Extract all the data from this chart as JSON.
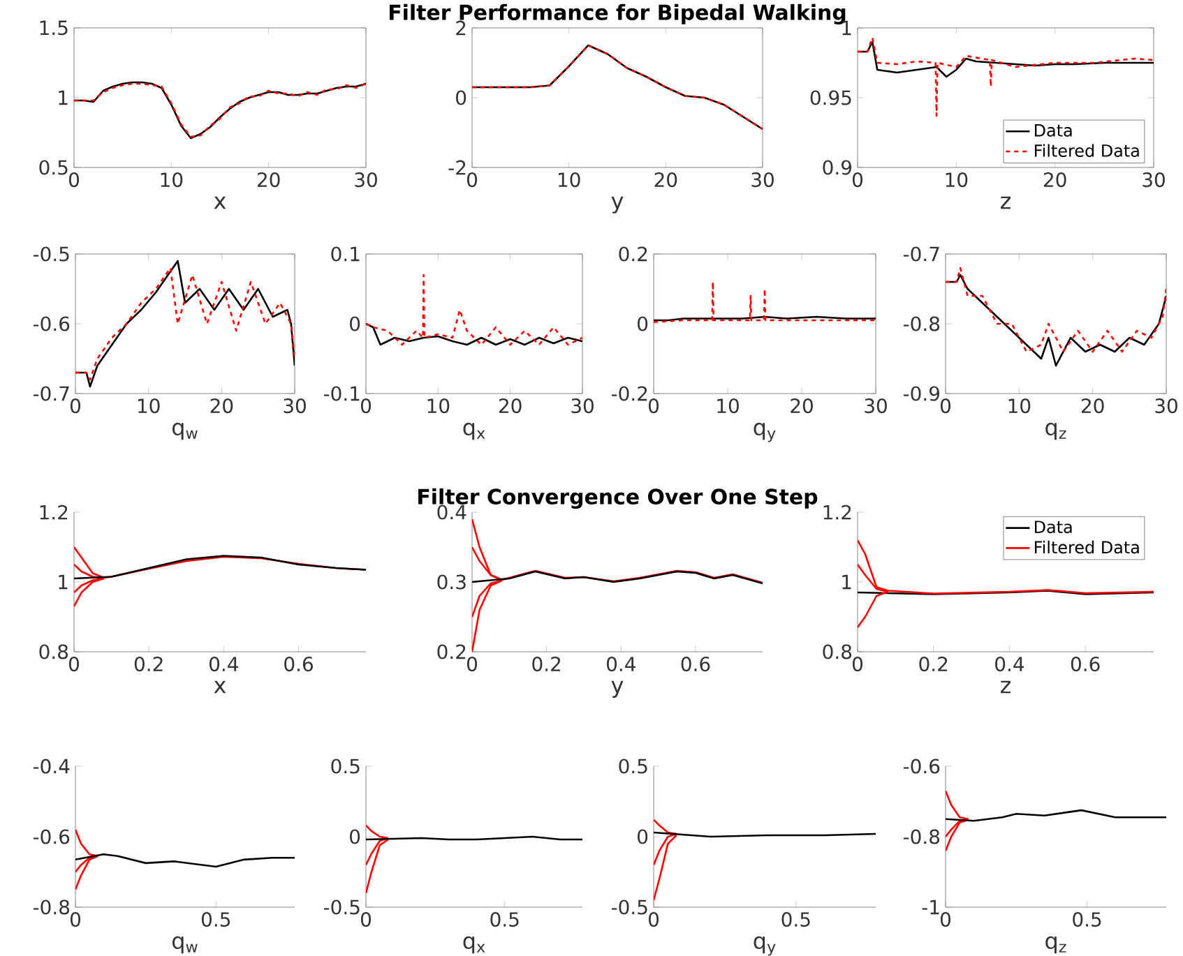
{
  "chart_data": [
    {
      "type": "line",
      "xlabel": "x",
      "xlim": [
        0,
        30
      ],
      "xticks": [
        0,
        10,
        20,
        30
      ],
      "ylim": [
        0.5,
        1.5
      ],
      "yticks": [
        0.5,
        1,
        1.5
      ],
      "series": [
        {
          "color": "#000000",
          "x": [
            0,
            1,
            2,
            3,
            4,
            5,
            6,
            7,
            8,
            9,
            10,
            11,
            12,
            13,
            14,
            15,
            16,
            17,
            18,
            19,
            20,
            21,
            22,
            23,
            24,
            25,
            26,
            27,
            28,
            29,
            30
          ],
          "values": [
            0.98,
            0.98,
            0.97,
            1.05,
            1.08,
            1.1,
            1.11,
            1.11,
            1.1,
            1.07,
            0.95,
            0.8,
            0.71,
            0.74,
            0.79,
            0.86,
            0.92,
            0.97,
            1.0,
            1.02,
            1.04,
            1.04,
            1.02,
            1.02,
            1.03,
            1.03,
            1.05,
            1.07,
            1.08,
            1.08,
            1.1
          ]
        },
        {
          "color": "#ff0000",
          "line_style": "dashed",
          "x": [
            0,
            1,
            2,
            3,
            4,
            5,
            6,
            7,
            8,
            9,
            10,
            11,
            12,
            13,
            14,
            15,
            16,
            17,
            18,
            19,
            20,
            21,
            22,
            23,
            24,
            25,
            26,
            27,
            28,
            29,
            30
          ],
          "values": [
            0.98,
            0.98,
            0.98,
            1.04,
            1.07,
            1.09,
            1.1,
            1.1,
            1.09,
            1.08,
            0.96,
            0.81,
            0.72,
            0.73,
            0.8,
            0.85,
            0.93,
            0.96,
            1.01,
            1.01,
            1.05,
            1.03,
            1.03,
            1.01,
            1.04,
            1.02,
            1.06,
            1.06,
            1.09,
            1.07,
            1.1
          ]
        }
      ]
    },
    {
      "type": "line",
      "title": "Filter Performance for Bipedal Walking",
      "xlabel": "y",
      "xlim": [
        0,
        30
      ],
      "xticks": [
        0,
        10,
        20,
        30
      ],
      "ylim": [
        -2,
        2
      ],
      "yticks": [
        -2,
        0,
        2
      ],
      "series": [
        {
          "color": "#000000",
          "x": [
            0,
            2,
            4,
            6,
            8,
            10,
            12,
            14,
            16,
            18,
            20,
            22,
            24,
            26,
            28,
            30
          ],
          "values": [
            0.3,
            0.3,
            0.3,
            0.3,
            0.35,
            0.9,
            1.5,
            1.25,
            0.85,
            0.6,
            0.3,
            0.05,
            0.0,
            -0.2,
            -0.55,
            -0.9
          ]
        },
        {
          "color": "#ff0000",
          "line_style": "dashed",
          "x": [
            0,
            2,
            4,
            6,
            8,
            10,
            12,
            14,
            16,
            18,
            20,
            22,
            24,
            26,
            28,
            30
          ],
          "values": [
            0.3,
            0.3,
            0.3,
            0.3,
            0.35,
            0.9,
            1.5,
            1.25,
            0.85,
            0.6,
            0.3,
            0.05,
            0.0,
            -0.2,
            -0.55,
            -0.9
          ]
        }
      ]
    },
    {
      "type": "line",
      "xlabel": "z",
      "xlim": [
        0,
        30
      ],
      "xticks": [
        0,
        10,
        20,
        30
      ],
      "ylim": [
        0.9,
        1
      ],
      "yticks": [
        0.9,
        0.95,
        1
      ],
      "legend": "bottom right",
      "series": [
        {
          "name": "Data",
          "color": "#000000",
          "x": [
            0,
            1,
            1.5,
            2,
            4,
            6,
            8,
            9,
            10,
            11,
            12,
            14,
            16,
            18,
            20,
            22,
            25,
            28,
            30
          ],
          "values": [
            0.983,
            0.983,
            0.99,
            0.97,
            0.968,
            0.97,
            0.972,
            0.965,
            0.97,
            0.978,
            0.976,
            0.975,
            0.974,
            0.973,
            0.974,
            0.974,
            0.975,
            0.975,
            0.975
          ]
        },
        {
          "name": "Filtered Data",
          "color": "#ff0000",
          "line_style": "dashed",
          "x": [
            0,
            1,
            1.5,
            2,
            4,
            6,
            7.9,
            8,
            8.1,
            10,
            11,
            13.4,
            13.5,
            13.6,
            16,
            20,
            24,
            28,
            30
          ],
          "values": [
            0.983,
            0.983,
            0.993,
            0.975,
            0.974,
            0.976,
            0.975,
            0.937,
            0.975,
            0.972,
            0.98,
            0.977,
            0.958,
            0.977,
            0.972,
            0.975,
            0.975,
            0.978,
            0.977
          ]
        }
      ]
    },
    {
      "type": "line",
      "xlabel": "q$_{w}$",
      "xlim": [
        0,
        30
      ],
      "xticks": [
        0,
        10,
        20,
        30
      ],
      "ylim": [
        -0.7,
        -0.5
      ],
      "yticks": [
        -0.7,
        -0.6,
        -0.5
      ],
      "series": [
        {
          "color": "#000000",
          "x": [
            0,
            1.5,
            2,
            3,
            5,
            7,
            9,
            11,
            12,
            14,
            15,
            17,
            19,
            21,
            23,
            25,
            27,
            29,
            29.5,
            30
          ],
          "values": [
            -0.67,
            -0.67,
            -0.69,
            -0.66,
            -0.63,
            -0.6,
            -0.58,
            -0.555,
            -0.54,
            -0.51,
            -0.57,
            -0.55,
            -0.58,
            -0.55,
            -0.58,
            -0.55,
            -0.59,
            -0.58,
            -0.6,
            -0.66
          ]
        },
        {
          "color": "#ff0000",
          "line_style": "dashed",
          "x": [
            0,
            1.5,
            2,
            3,
            5,
            7,
            9,
            11,
            13,
            14,
            16,
            18,
            20,
            22,
            24,
            26,
            28,
            29.5,
            30
          ],
          "values": [
            -0.67,
            -0.67,
            -0.68,
            -0.65,
            -0.62,
            -0.6,
            -0.57,
            -0.55,
            -0.52,
            -0.6,
            -0.53,
            -0.6,
            -0.54,
            -0.61,
            -0.54,
            -0.6,
            -0.57,
            -0.6,
            -0.65
          ]
        }
      ]
    },
    {
      "type": "line",
      "xlabel": "q$_{x}$",
      "xlim": [
        0,
        30
      ],
      "xticks": [
        0,
        10,
        20,
        30
      ],
      "ylim": [
        -0.1,
        0.1
      ],
      "yticks": [
        -0.1,
        0,
        0.1
      ],
      "series": [
        {
          "color": "#000000",
          "x": [
            0,
            1,
            2,
            4,
            6,
            8,
            10,
            12,
            14,
            16,
            18,
            20,
            22,
            24,
            26,
            28,
            30
          ],
          "values": [
            0,
            -0.005,
            -0.03,
            -0.02,
            -0.025,
            -0.02,
            -0.018,
            -0.025,
            -0.03,
            -0.02,
            -0.03,
            -0.022,
            -0.03,
            -0.02,
            -0.028,
            -0.02,
            -0.025
          ]
        },
        {
          "color": "#ff0000",
          "line_style": "dashed",
          "x": [
            0,
            1,
            3,
            5,
            7,
            7.9,
            8,
            8.1,
            10,
            12,
            13,
            14,
            16,
            18,
            20,
            22,
            24,
            26,
            28,
            30
          ],
          "values": [
            0,
            -0.005,
            -0.01,
            -0.03,
            -0.01,
            -0.02,
            0.07,
            -0.02,
            -0.015,
            -0.02,
            0.02,
            -0.01,
            -0.03,
            -0.005,
            -0.03,
            -0.01,
            -0.03,
            -0.005,
            -0.03,
            -0.02
          ]
        }
      ]
    },
    {
      "type": "line",
      "xlabel": "q$_{y}$",
      "xlim": [
        0,
        30
      ],
      "xticks": [
        0,
        10,
        20,
        30
      ],
      "ylim": [
        -0.2,
        0.2
      ],
      "yticks": [
        -0.2,
        0,
        0.2
      ],
      "series": [
        {
          "color": "#000000",
          "x": [
            0,
            2,
            4,
            8,
            12,
            15,
            18,
            22,
            26,
            30
          ],
          "values": [
            0.01,
            0.01,
            0.015,
            0.015,
            0.015,
            0.02,
            0.015,
            0.02,
            0.015,
            0.015
          ]
        },
        {
          "color": "#ff0000",
          "line_style": "dashed",
          "x": [
            0,
            4,
            7.9,
            8,
            8.1,
            13,
            13.1,
            13.2,
            14.9,
            15,
            15.1,
            20,
            25,
            30
          ],
          "values": [
            0.005,
            0.01,
            0.01,
            0.12,
            0.01,
            0.01,
            0.08,
            0.01,
            0.01,
            0.1,
            0.01,
            0.01,
            0.01,
            0.01
          ]
        }
      ]
    },
    {
      "type": "line",
      "xlabel": "q$_{z}$",
      "xlim": [
        0,
        30
      ],
      "xticks": [
        0,
        10,
        20,
        30
      ],
      "ylim": [
        -0.9,
        -0.7
      ],
      "yticks": [
        -0.9,
        -0.8,
        -0.7
      ],
      "series": [
        {
          "color": "#000000",
          "x": [
            0,
            1.5,
            2,
            3,
            5,
            7,
            9,
            11,
            12,
            13,
            14,
            15,
            17,
            19,
            21,
            23,
            25,
            27,
            29,
            30
          ],
          "values": [
            -0.74,
            -0.74,
            -0.73,
            -0.75,
            -0.77,
            -0.79,
            -0.81,
            -0.83,
            -0.84,
            -0.85,
            -0.82,
            -0.86,
            -0.82,
            -0.84,
            -0.83,
            -0.84,
            -0.82,
            -0.83,
            -0.8,
            -0.76
          ]
        },
        {
          "color": "#ff0000",
          "line_style": "dashed",
          "x": [
            0,
            1.5,
            2,
            3,
            5,
            7,
            9,
            11,
            13,
            14,
            16,
            18,
            20,
            22,
            24,
            26,
            28,
            29.5,
            30
          ],
          "values": [
            -0.74,
            -0.74,
            -0.72,
            -0.76,
            -0.76,
            -0.8,
            -0.8,
            -0.84,
            -0.83,
            -0.8,
            -0.84,
            -0.81,
            -0.84,
            -0.81,
            -0.84,
            -0.81,
            -0.82,
            -0.79,
            -0.75
          ]
        }
      ]
    },
    {
      "type": "line",
      "xlabel": "x",
      "xlim": [
        0,
        0.78
      ],
      "xticks": [
        0,
        0.2,
        0.4,
        0.6
      ],
      "ylim": [
        0.8,
        1.2
      ],
      "yticks": [
        0.8,
        1,
        1.2
      ],
      "series": [
        {
          "color": "#ff0000",
          "x": [
            0,
            0.02,
            0.05,
            0.08,
            0.1,
            0.2,
            0.3,
            0.4,
            0.5,
            0.6,
            0.7,
            0.78
          ],
          "values": [
            1.1,
            1.07,
            1.025,
            1.012,
            1.015,
            1.038,
            1.06,
            1.072,
            1.068,
            1.052,
            1.04,
            1.035
          ]
        },
        {
          "color": "#ff0000",
          "x": [
            0,
            0.02,
            0.05,
            0.08
          ],
          "values": [
            1.05,
            1.03,
            1.015,
            1.01
          ]
        },
        {
          "color": "#ff0000",
          "x": [
            0,
            0.02,
            0.05,
            0.08
          ],
          "values": [
            0.97,
            0.99,
            1.005,
            1.01
          ]
        },
        {
          "color": "#ff0000",
          "x": [
            0,
            0.02,
            0.05,
            0.08
          ],
          "values": [
            0.93,
            0.97,
            1.0,
            1.01
          ]
        },
        {
          "color": "#000000",
          "x": [
            0,
            0.1,
            0.2,
            0.3,
            0.4,
            0.5,
            0.6,
            0.7,
            0.78
          ],
          "values": [
            1.01,
            1.015,
            1.04,
            1.065,
            1.075,
            1.07,
            1.05,
            1.04,
            1.035
          ]
        }
      ]
    },
    {
      "type": "line",
      "title": "Filter Convergence Over One Step",
      "xlabel": "y",
      "xlim": [
        0,
        0.78
      ],
      "xticks": [
        0,
        0.2,
        0.4,
        0.6
      ],
      "ylim": [
        0.2,
        0.4
      ],
      "yticks": [
        0.2,
        0.3,
        0.4
      ],
      "series": [
        {
          "color": "#ff0000",
          "x": [
            0,
            0.02,
            0.05,
            0.08,
            0.1,
            0.17,
            0.25,
            0.3,
            0.38,
            0.45,
            0.55,
            0.6,
            0.65,
            0.7,
            0.78
          ],
          "values": [
            0.39,
            0.35,
            0.31,
            0.303,
            0.306,
            0.316,
            0.306,
            0.307,
            0.301,
            0.306,
            0.316,
            0.314,
            0.306,
            0.311,
            0.299
          ]
        },
        {
          "color": "#ff0000",
          "x": [
            0,
            0.02,
            0.05,
            0.08
          ],
          "values": [
            0.35,
            0.33,
            0.31,
            0.303
          ]
        },
        {
          "color": "#ff0000",
          "x": [
            0,
            0.02,
            0.05,
            0.08
          ],
          "values": [
            0.25,
            0.28,
            0.298,
            0.302
          ]
        },
        {
          "color": "#ff0000",
          "x": [
            0,
            0.02,
            0.05,
            0.08
          ],
          "values": [
            0.2,
            0.26,
            0.295,
            0.302
          ]
        },
        {
          "color": "#000000",
          "x": [
            0,
            0.1,
            0.17,
            0.25,
            0.3,
            0.38,
            0.45,
            0.55,
            0.6,
            0.65,
            0.7,
            0.78
          ],
          "values": [
            0.3,
            0.305,
            0.315,
            0.305,
            0.307,
            0.3,
            0.305,
            0.315,
            0.313,
            0.305,
            0.31,
            0.298
          ]
        }
      ]
    },
    {
      "type": "line",
      "xlabel": "z",
      "xlim": [
        0,
        0.78
      ],
      "xticks": [
        0,
        0.2,
        0.4,
        0.6
      ],
      "ylim": [
        0.8,
        1.2
      ],
      "yticks": [
        0.8,
        1,
        1.2
      ],
      "legend": "top right",
      "series": [
        {
          "name": "Data",
          "color": "#000000",
          "x": [
            0,
            0.2,
            0.4,
            0.5,
            0.6,
            0.78
          ],
          "values": [
            0.97,
            0.965,
            0.97,
            0.975,
            0.965,
            0.97
          ]
        },
        {
          "name": "Filtered Data",
          "color": "#ff0000",
          "x": [
            0,
            0.02,
            0.05,
            0.08,
            0.2,
            0.4,
            0.5,
            0.6,
            0.78
          ],
          "values": [
            1.12,
            1.08,
            0.985,
            0.975,
            0.967,
            0.972,
            0.977,
            0.968,
            0.972
          ]
        },
        {
          "color": "#ff0000",
          "x": [
            0,
            0.02,
            0.05,
            0.08
          ],
          "values": [
            1.05,
            1.02,
            0.98,
            0.972
          ]
        },
        {
          "color": "#ff0000",
          "x": [
            0,
            0.02,
            0.05,
            0.08
          ],
          "values": [
            0.87,
            0.9,
            0.96,
            0.972
          ]
        }
      ]
    },
    {
      "type": "line",
      "xlabel": "q$_{w}$",
      "xlim": [
        0,
        0.78
      ],
      "xticks": [
        0,
        0.5
      ],
      "ylim": [
        -0.8,
        -0.4
      ],
      "yticks": [
        -0.8,
        -0.6,
        -0.4
      ],
      "series": [
        {
          "color": "#ff0000",
          "x": [
            0,
            0.02,
            0.05,
            0.08
          ],
          "values": [
            -0.58,
            -0.62,
            -0.65,
            -0.655
          ]
        },
        {
          "color": "#ff0000",
          "x": [
            0,
            0.02,
            0.05,
            0.08
          ],
          "values": [
            -0.75,
            -0.71,
            -0.665,
            -0.655
          ]
        },
        {
          "color": "#ff0000",
          "x": [
            0,
            0.02,
            0.05,
            0.08
          ],
          "values": [
            -0.7,
            -0.68,
            -0.66,
            -0.655
          ]
        },
        {
          "color": "#000000",
          "x": [
            0,
            0.1,
            0.15,
            0.25,
            0.35,
            0.5,
            0.6,
            0.7,
            0.78
          ],
          "values": [
            -0.665,
            -0.65,
            -0.655,
            -0.675,
            -0.67,
            -0.685,
            -0.665,
            -0.66,
            -0.66
          ]
        }
      ]
    },
    {
      "type": "line",
      "xlabel": "q$_{x}$",
      "xlim": [
        0,
        0.78
      ],
      "xticks": [
        0,
        0.5
      ],
      "ylim": [
        -0.5,
        0.5
      ],
      "yticks": [
        -0.5,
        0,
        0.5
      ],
      "series": [
        {
          "color": "#ff0000",
          "x": [
            0,
            0.02,
            0.05,
            0.08
          ],
          "values": [
            0.08,
            0.04,
            0.0,
            -0.01
          ]
        },
        {
          "color": "#ff0000",
          "x": [
            0,
            0.02,
            0.05,
            0.08
          ],
          "values": [
            -0.4,
            -0.25,
            -0.06,
            -0.02
          ]
        },
        {
          "color": "#ff0000",
          "x": [
            0,
            0.02,
            0.05,
            0.08
          ],
          "values": [
            -0.2,
            -0.12,
            -0.03,
            -0.01
          ]
        },
        {
          "color": "#000000",
          "x": [
            0,
            0.2,
            0.3,
            0.4,
            0.6,
            0.7,
            0.78
          ],
          "values": [
            -0.02,
            -0.01,
            -0.02,
            -0.02,
            0.0,
            -0.02,
            -0.02
          ]
        }
      ]
    },
    {
      "type": "line",
      "xlabel": "q$_{y}$",
      "xlim": [
        0,
        0.78
      ],
      "xticks": [
        0,
        0.5
      ],
      "ylim": [
        -0.5,
        0.5
      ],
      "yticks": [
        -0.5,
        0,
        0.5
      ],
      "series": [
        {
          "color": "#ff0000",
          "x": [
            0,
            0.02,
            0.05,
            0.08
          ],
          "values": [
            0.12,
            0.08,
            0.03,
            0.02
          ]
        },
        {
          "color": "#ff0000",
          "x": [
            0,
            0.02,
            0.05,
            0.08
          ],
          "values": [
            -0.45,
            -0.3,
            -0.05,
            0.01
          ]
        },
        {
          "color": "#ff0000",
          "x": [
            0,
            0.02,
            0.05,
            0.08
          ],
          "values": [
            -0.2,
            -0.1,
            0.0,
            0.02
          ]
        },
        {
          "color": "#000000",
          "x": [
            0,
            0.2,
            0.4,
            0.6,
            0.78
          ],
          "values": [
            0.03,
            0.0,
            0.01,
            0.01,
            0.02
          ]
        }
      ]
    },
    {
      "type": "line",
      "xlabel": "q$_{z}$",
      "xlim": [
        0,
        0.78
      ],
      "xticks": [
        0,
        0.5
      ],
      "ylim": [
        -1,
        -0.6
      ],
      "yticks": [
        -1,
        -0.8,
        -0.6
      ],
      "series": [
        {
          "color": "#ff0000",
          "x": [
            0,
            0.02,
            0.05,
            0.08
          ],
          "values": [
            -0.67,
            -0.71,
            -0.745,
            -0.75
          ]
        },
        {
          "color": "#ff0000",
          "x": [
            0,
            0.02,
            0.05,
            0.08
          ],
          "values": [
            -0.84,
            -0.8,
            -0.76,
            -0.752
          ]
        },
        {
          "color": "#ff0000",
          "x": [
            0,
            0.02,
            0.05,
            0.08
          ],
          "values": [
            -0.8,
            -0.78,
            -0.755,
            -0.75
          ]
        },
        {
          "color": "#000000",
          "x": [
            0,
            0.1,
            0.2,
            0.25,
            0.35,
            0.48,
            0.6,
            0.78
          ],
          "values": [
            -0.75,
            -0.755,
            -0.745,
            -0.735,
            -0.74,
            -0.725,
            -0.745,
            -0.745
          ]
        }
      ]
    }
  ]
}
